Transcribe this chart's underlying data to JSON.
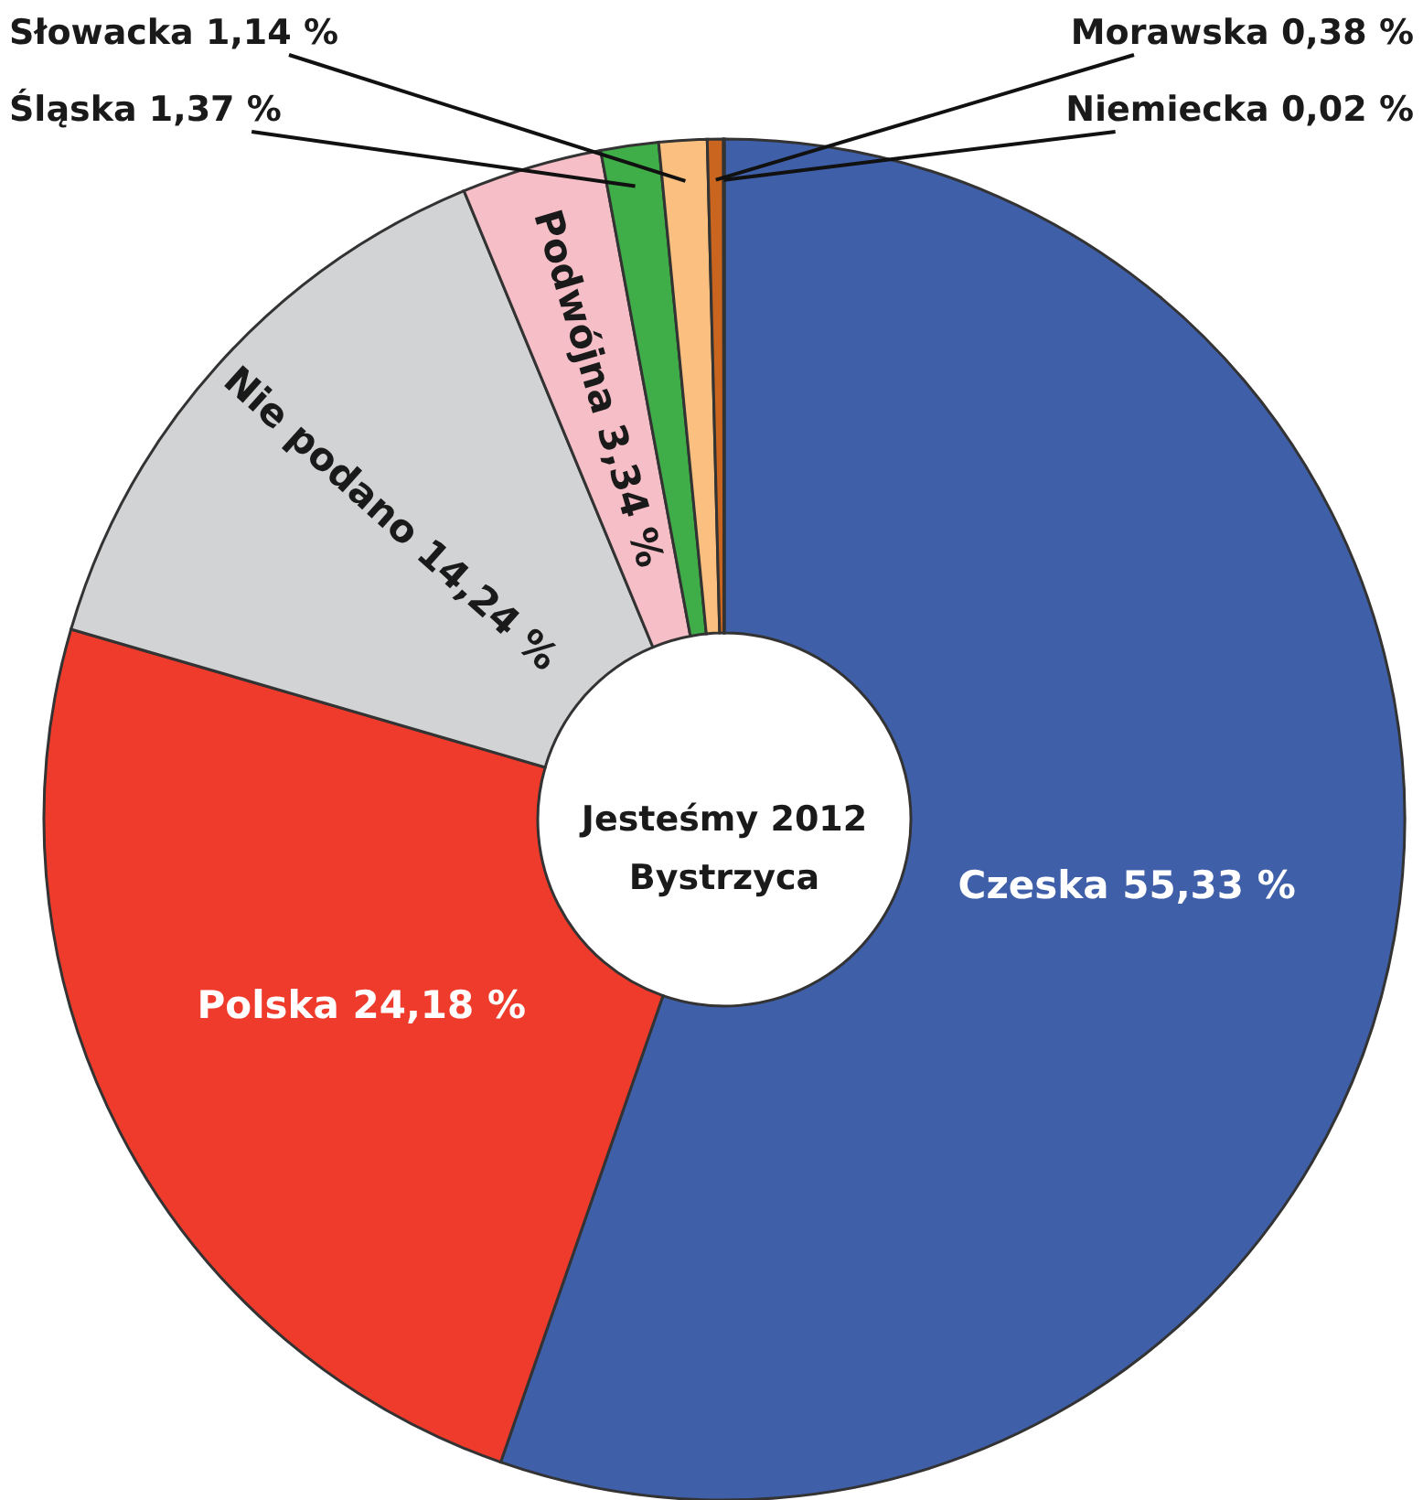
{
  "chart_data": {
    "type": "donut",
    "title": "Jesteśmy 2012 Bystrzyca",
    "categories": [
      "Czeska",
      "Polska",
      "Nie podano",
      "Podwójna",
      "Śląska",
      "Słowacka",
      "Morawska",
      "Niemiecka"
    ],
    "values": [
      55.33,
      24.18,
      14.24,
      3.34,
      1.37,
      1.14,
      0.38,
      0.02
    ],
    "colors": [
      "#3f5fa9",
      "#ee3b2c",
      "#d1d3d4",
      "#f6bfc8",
      "#3fae49",
      "#fbbf7f",
      "#c9651f",
      "#ffffff"
    ],
    "value_labels": [
      "55,33 %",
      "24,18 %",
      "14,24 %",
      "3,34 %",
      "1,37 %",
      "1,14 %",
      "0,38 %",
      "0,02 %"
    ]
  }
}
